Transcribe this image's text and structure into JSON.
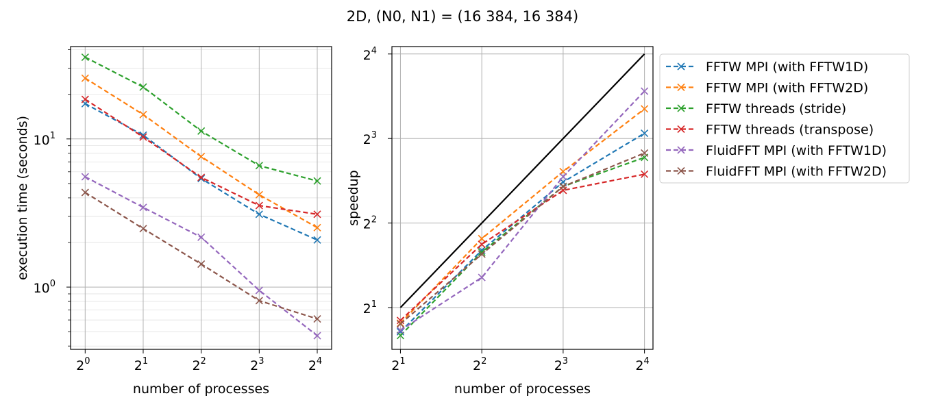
{
  "figure": {
    "suptitle": "2D, (N0, N1) = (16 384, 16 384)"
  },
  "legend": {
    "placement": "outside right of second chart, top",
    "entries": [
      {
        "label": "FFTW MPI (with FFTW1D)",
        "color": "#1f77b4"
      },
      {
        "label": "FFTW MPI (with FFTW2D)",
        "color": "#ff7f0e"
      },
      {
        "label": "FFTW threads (stride)",
        "color": "#2ca02c"
      },
      {
        "label": "FFTW threads (transpose)",
        "color": "#d62728"
      },
      {
        "label": "FluidFFT MPI (with FFTW1D)",
        "color": "#9467bd"
      },
      {
        "label": "FluidFFT MPI (with FFTW2D)",
        "color": "#8c564b"
      }
    ]
  },
  "chart_data": [
    {
      "type": "line",
      "title": "",
      "xlabel": "number of processes",
      "ylabel": "execution time (seconds)",
      "xscale": "log2",
      "yscale": "log10",
      "xlim": [
        0.84,
        19.0
      ],
      "ylim": [
        0.38,
        42
      ],
      "grid": true,
      "minor_grid_y": true,
      "x_ticks": [
        {
          "value": 1,
          "base": "2",
          "exp": "0"
        },
        {
          "value": 2,
          "base": "2",
          "exp": "1"
        },
        {
          "value": 4,
          "base": "2",
          "exp": "2"
        },
        {
          "value": 8,
          "base": "2",
          "exp": "3"
        },
        {
          "value": 16,
          "base": "2",
          "exp": "4"
        }
      ],
      "y_ticks": [
        {
          "value": 1,
          "base": "10",
          "exp": "0"
        },
        {
          "value": 10,
          "base": "10",
          "exp": "1"
        }
      ],
      "x": [
        1,
        2,
        4,
        8,
        16
      ],
      "series": [
        {
          "name": "FFTW MPI (with FFTW1D)",
          "color": "#1f77b4",
          "values": [
            17.3,
            10.6,
            5.4,
            3.1,
            2.08
          ]
        },
        {
          "name": "FFTW MPI (with FFTW2D)",
          "color": "#ff7f0e",
          "values": [
            25.7,
            14.6,
            7.6,
            4.2,
            2.52
          ]
        },
        {
          "name": "FFTW threads (stride)",
          "color": "#2ca02c",
          "values": [
            35.6,
            22.4,
            11.3,
            6.6,
            5.2
          ]
        },
        {
          "name": "FFTW threads (transpose)",
          "color": "#d62728",
          "values": [
            18.5,
            10.3,
            5.5,
            3.55,
            3.1
          ]
        },
        {
          "name": "FluidFFT MPI (with FFTW1D)",
          "color": "#9467bd",
          "values": [
            5.55,
            3.45,
            2.17,
            0.95,
            0.47
          ]
        },
        {
          "name": "FluidFFT MPI (with FFTW2D)",
          "color": "#8c564b",
          "values": [
            4.35,
            2.48,
            1.43,
            0.81,
            0.61
          ]
        }
      ]
    },
    {
      "type": "line",
      "title": "",
      "xlabel": "number of processes",
      "ylabel": "speedup",
      "xscale": "log2",
      "yscale": "log2",
      "xlim": [
        1.86,
        17.2
      ],
      "ylim": [
        1.42,
        17.0
      ],
      "grid": true,
      "x_ticks": [
        {
          "value": 2,
          "base": "2",
          "exp": "1"
        },
        {
          "value": 4,
          "base": "2",
          "exp": "2"
        },
        {
          "value": 8,
          "base": "2",
          "exp": "3"
        },
        {
          "value": 16,
          "base": "2",
          "exp": "4"
        }
      ],
      "y_ticks": [
        {
          "value": 2,
          "base": "2",
          "exp": "1"
        },
        {
          "value": 4,
          "base": "2",
          "exp": "2"
        },
        {
          "value": 8,
          "base": "2",
          "exp": "3"
        },
        {
          "value": 16,
          "base": "2",
          "exp": "4"
        }
      ],
      "x": [
        2,
        4,
        8,
        16
      ],
      "ideal": {
        "color": "#000000",
        "x": [
          2,
          16
        ],
        "values": [
          2,
          16
        ]
      },
      "series": [
        {
          "name": "FFTW MPI (with FFTW1D)",
          "color": "#1f77b4",
          "values": [
            1.64,
            3.2,
            5.6,
            8.35
          ]
        },
        {
          "name": "FFTW MPI (with FFTW2D)",
          "color": "#ff7f0e",
          "values": [
            1.76,
            3.52,
            6.1,
            10.2
          ]
        },
        {
          "name": "FFTW threads (stride)",
          "color": "#2ca02c",
          "values": [
            1.59,
            3.15,
            5.4,
            6.85
          ]
        },
        {
          "name": "FFTW threads (transpose)",
          "color": "#d62728",
          "values": [
            1.8,
            3.36,
            5.23,
            5.97
          ]
        },
        {
          "name": "FluidFFT MPI (with FFTW1D)",
          "color": "#9467bd",
          "values": [
            1.66,
            2.56,
            5.85,
            11.8
          ]
        },
        {
          "name": "FluidFFT MPI (with FFTW2D)",
          "color": "#8c564b",
          "values": [
            1.75,
            3.1,
            5.4,
            7.1
          ]
        }
      ]
    }
  ]
}
